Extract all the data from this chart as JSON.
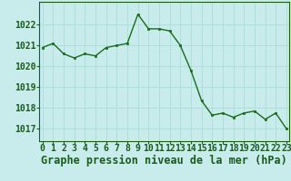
{
  "x": [
    0,
    1,
    2,
    3,
    4,
    5,
    6,
    7,
    8,
    9,
    10,
    11,
    12,
    13,
    14,
    15,
    16,
    17,
    18,
    19,
    20,
    21,
    22,
    23
  ],
  "y": [
    1020.9,
    1021.1,
    1020.6,
    1020.4,
    1020.6,
    1020.5,
    1020.9,
    1021.0,
    1021.1,
    1022.5,
    1021.8,
    1021.8,
    1021.7,
    1021.0,
    1019.8,
    1018.35,
    1017.65,
    1017.75,
    1017.55,
    1017.75,
    1017.85,
    1017.45,
    1017.75,
    1017.0
  ],
  "line_color": "#1a6b1a",
  "marker_color": "#1a6b1a",
  "bg_color": "#c8ecec",
  "grid_color": "#b0dede",
  "title": "Graphe pression niveau de la mer (hPa)",
  "ylabel_values": [
    1017,
    1018,
    1019,
    1020,
    1021,
    1022
  ],
  "ylim": [
    1016.4,
    1023.1
  ],
  "xlim": [
    -0.3,
    23.3
  ],
  "title_color": "#1a5c1a",
  "title_fontsize": 8.5,
  "tick_fontsize": 7.0
}
